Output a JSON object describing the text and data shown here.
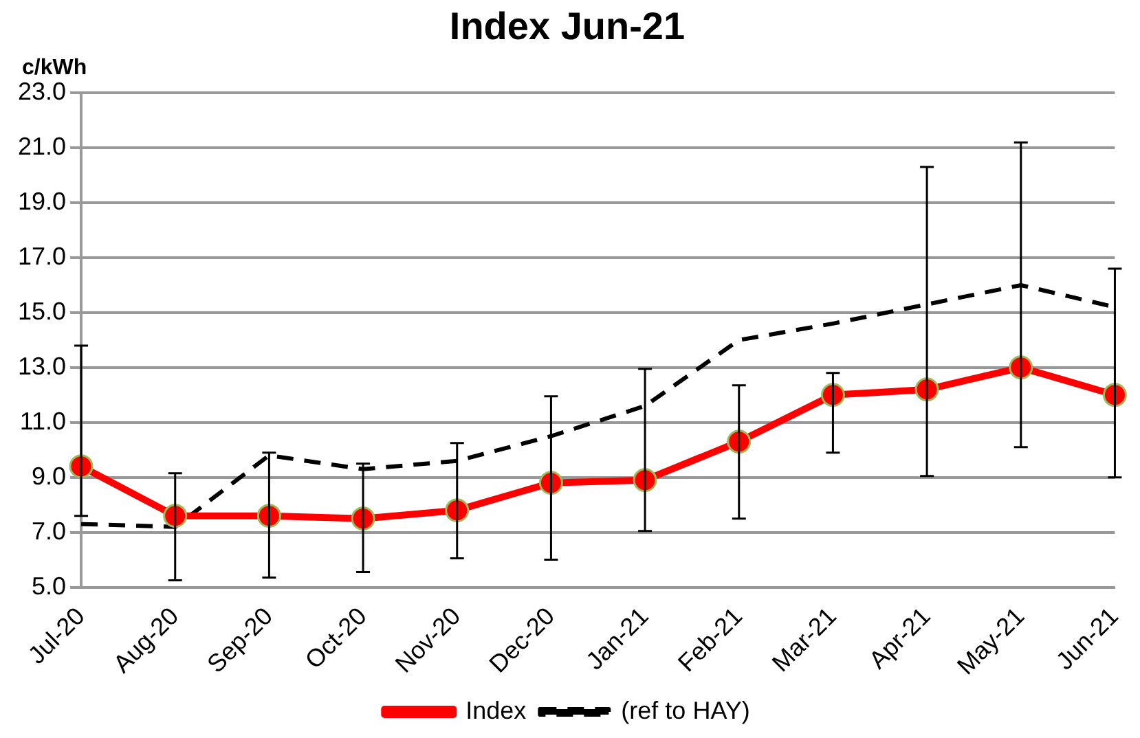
{
  "chart_data": {
    "type": "line",
    "title": "Index Jun-21",
    "ylabel": "c/kWh",
    "categories": [
      "Jul-20",
      "Aug-20",
      "Sep-20",
      "Oct-20",
      "Nov-20",
      "Dec-20",
      "Jan-21",
      "Feb-21",
      "Mar-21",
      "Apr-21",
      "May-21",
      "Jun-21"
    ],
    "series": [
      {
        "name": "Index",
        "color": "#ff0000",
        "marker": "circle",
        "line_style": "solid",
        "values": [
          9.4,
          7.6,
          7.6,
          7.5,
          7.8,
          8.8,
          8.9,
          10.3,
          12.0,
          12.2,
          13.0,
          12.0
        ],
        "errors": [
          [
            7.6,
            13.8
          ],
          [
            5.25,
            9.15
          ],
          [
            5.35,
            9.9
          ],
          [
            5.55,
            9.5
          ],
          [
            6.05,
            10.25
          ],
          [
            6.0,
            11.95
          ],
          [
            7.05,
            12.95
          ],
          [
            7.5,
            12.35
          ],
          [
            9.9,
            12.8
          ],
          [
            9.05,
            20.3
          ],
          [
            10.1,
            21.2
          ],
          [
            9.0,
            16.6
          ]
        ]
      },
      {
        "name": "(ref to HAY)",
        "color": "#000000",
        "marker": "none",
        "line_style": "dashed",
        "values": [
          7.3,
          7.2,
          9.8,
          9.3,
          9.6,
          10.5,
          11.6,
          14.0,
          14.6,
          15.3,
          16.0,
          15.2
        ]
      }
    ],
    "ylim": [
      5,
      23
    ],
    "yticks": [
      {
        "value": 5,
        "label": "5.0"
      },
      {
        "value": 7,
        "label": "7.0"
      },
      {
        "value": 9,
        "label": "9.0"
      },
      {
        "value": 11,
        "label": "11.0"
      },
      {
        "value": 13,
        "label": "13.0"
      },
      {
        "value": 15,
        "label": "15.0"
      },
      {
        "value": 17,
        "label": "17.0"
      },
      {
        "value": 19,
        "label": "19.0"
      },
      {
        "value": 21,
        "label": "21.0"
      },
      {
        "value": 23,
        "label": "23.0"
      }
    ],
    "grid": "y",
    "legend": "bottom"
  }
}
